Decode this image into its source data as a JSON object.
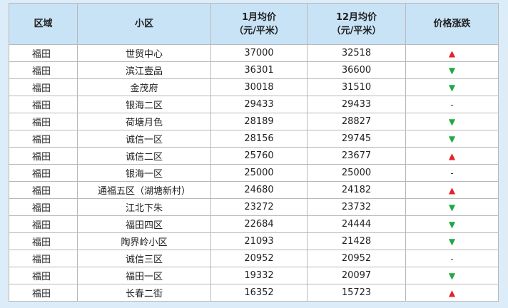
{
  "table": {
    "header": [
      [
        "区域"
      ],
      [
        "小区"
      ],
      [
        "1月均价",
        "（元/平米）"
      ],
      [
        "12月均价",
        "（元/平米）"
      ],
      [
        "价格涨跌"
      ]
    ],
    "rows": [
      [
        "福田",
        "世贸中心",
        37000,
        32518,
        {
          "symbol": "▲",
          "color": "#e8202a"
        }
      ],
      [
        "福田",
        "滨江壹品",
        36301,
        36600,
        {
          "symbol": "▼",
          "color": "#20a845"
        }
      ],
      [
        "福田",
        "金茂府",
        30018,
        31510,
        {
          "symbol": "▼",
          "color": "#20a845"
        }
      ],
      [
        "福田",
        "银海二区",
        29433,
        29433,
        {
          "symbol": "-",
          "color": "#333333"
        }
      ],
      [
        "福田",
        "荷塘月色",
        28189,
        28827,
        {
          "symbol": "▼",
          "color": "#20a845"
        }
      ],
      [
        "福田",
        "诚信一区",
        28156,
        29745,
        {
          "symbol": "▼",
          "color": "#20a845"
        }
      ],
      [
        "福田",
        "诚信二区",
        25760,
        23677,
        {
          "symbol": "▲",
          "color": "#e8202a"
        }
      ],
      [
        "福田",
        "银海一区",
        25000,
        25000,
        {
          "symbol": "-",
          "color": "#333333"
        }
      ],
      [
        "福田",
        "通福五区（湖塘新村）",
        24680,
        24182,
        {
          "symbol": "▲",
          "color": "#e8202a"
        }
      ],
      [
        "福田",
        "江北下朱",
        23272,
        23732,
        {
          "symbol": "▼",
          "color": "#20a845"
        }
      ],
      [
        "福田",
        "福田四区",
        22684,
        24444,
        {
          "symbol": "▼",
          "color": "#20a845"
        }
      ],
      [
        "福田",
        "陶界岭小区",
        21093,
        21428,
        {
          "symbol": "▼",
          "color": "#20a845"
        }
      ],
      [
        "福田",
        "诚信三区",
        20952,
        20952,
        {
          "symbol": "-",
          "color": "#333333"
        }
      ],
      [
        "福田",
        "福田一区",
        19332,
        20097,
        {
          "symbol": "▼",
          "color": "#20a845"
        }
      ],
      [
        "福田",
        "长春二街",
        16352,
        15723,
        {
          "symbol": "▲",
          "color": "#e8202a"
        }
      ]
    ]
  }
}
